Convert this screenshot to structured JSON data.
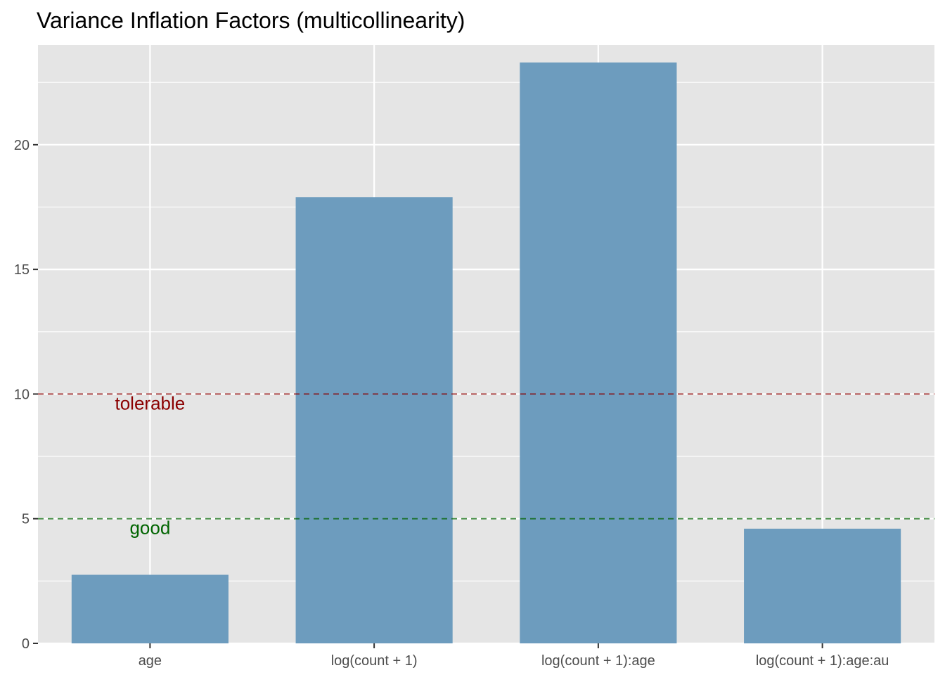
{
  "chart_data": {
    "type": "bar",
    "title": "Variance Inflation Factors (multicollinearity)",
    "xlabel": "",
    "ylabel": "",
    "categories": [
      "age",
      "log(count + 1)",
      "log(count + 1):age",
      "log(count + 1):age:au"
    ],
    "values": [
      2.75,
      17.9,
      23.3,
      4.6
    ],
    "ylim": [
      0,
      24
    ],
    "yticks": [
      0,
      5,
      10,
      15,
      20
    ],
    "grid": true,
    "bar_color": "#6d9cbe",
    "panel_color": "#e5e5e5",
    "reference_lines": [
      {
        "value": 10,
        "label": "tolerable",
        "color": "#8b0000"
      },
      {
        "value": 5,
        "label": "good",
        "color": "#006400"
      }
    ]
  }
}
